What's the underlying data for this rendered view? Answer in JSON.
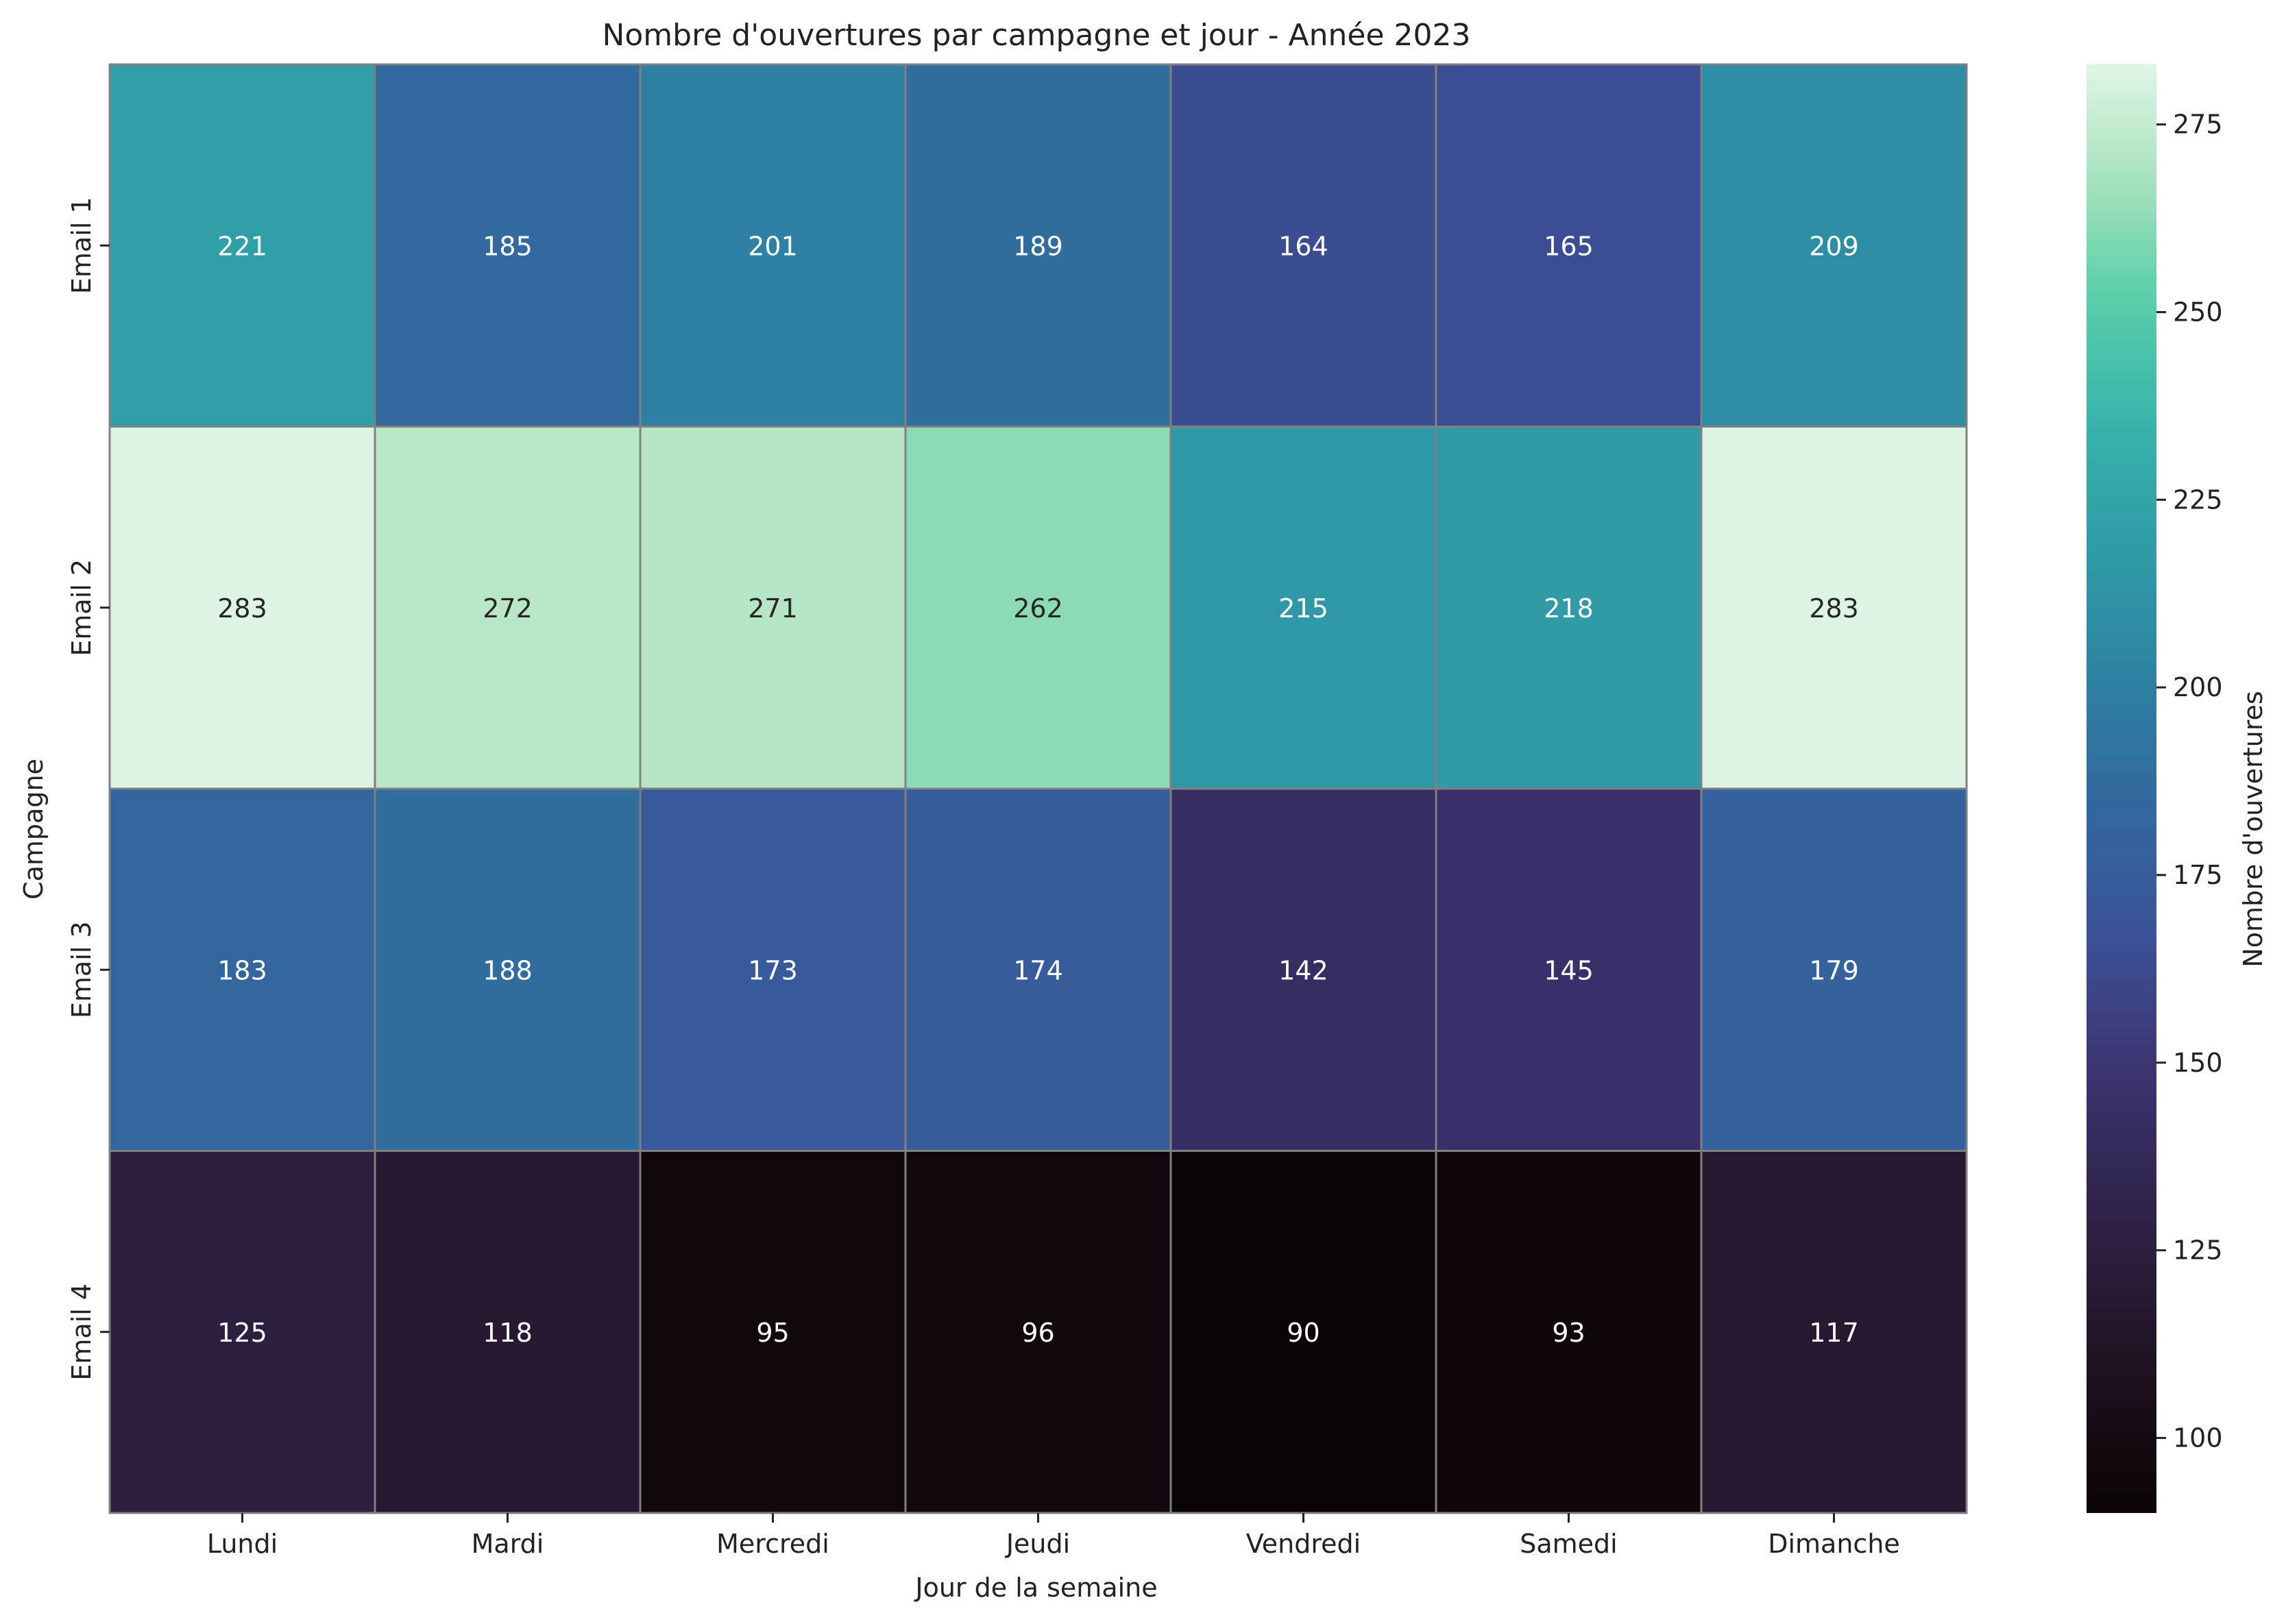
{
  "chart_data": {
    "type": "heatmap",
    "title": "Nombre d'ouvertures par campagne et jour - Année 2023",
    "xlabel": "Jour de la semaine",
    "ylabel": "Campagne",
    "x_categories": [
      "Lundi",
      "Mardi",
      "Mercredi",
      "Jeudi",
      "Vendredi",
      "Samedi",
      "Dimanche"
    ],
    "y_categories": [
      "Email 1",
      "Email 2",
      "Email 3",
      "Email 4"
    ],
    "values": [
      [
        221,
        185,
        201,
        189,
        164,
        165,
        209
      ],
      [
        283,
        272,
        271,
        262,
        215,
        218,
        283
      ],
      [
        183,
        188,
        173,
        174,
        142,
        145,
        179
      ],
      [
        125,
        118,
        95,
        96,
        90,
        93,
        117
      ]
    ],
    "colorbar": {
      "label": "Nombre d'ouvertures",
      "range": [
        90,
        283
      ],
      "ticks": [
        100,
        125,
        150,
        175,
        200,
        225,
        250,
        275
      ]
    },
    "colormap": "mako",
    "cell_border_color": "#808080"
  }
}
